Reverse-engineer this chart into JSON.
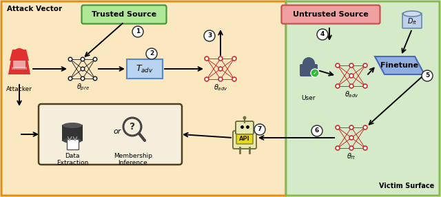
{
  "bg_left": "#fce8c0",
  "bg_right": "#d5eac8",
  "border_left": "#e09010",
  "border_right": "#88b855",
  "trusted_box_bg": "#b0e898",
  "trusted_box_border": "#48983a",
  "untrusted_box_bg": "#f0a0a0",
  "untrusted_box_border": "#c85050",
  "tadv_box_bg": "#b8d4f0",
  "tadv_box_border": "#5888cc",
  "finetune_box_bg": "#90aee0",
  "finetune_box_border": "#4868b8",
  "data_extract_box_bg": "#f5eedc",
  "data_extract_box_border": "#504020",
  "dft_box_bg": "#c0d0e8",
  "dft_box_border": "#6888aa",
  "network_node_color": "#cc2222",
  "pretrain_node_color": "#222222",
  "arrow_color": "#111111",
  "circle_bg": "#ffffff",
  "circle_border": "#333333",
  "attacker_color": "#e03030",
  "user_color": "#4a5878",
  "title_left": "Attack Vector",
  "title_right": "Victim Surface",
  "label_trusted": "Trusted Source",
  "label_untrusted": "Untrusted Source",
  "label_finetune": "Finetune",
  "label_data_extraction": "Data\nExtraction",
  "label_membership": "Membership\nInference",
  "label_attacker": "Attacker",
  "label_user": "User"
}
